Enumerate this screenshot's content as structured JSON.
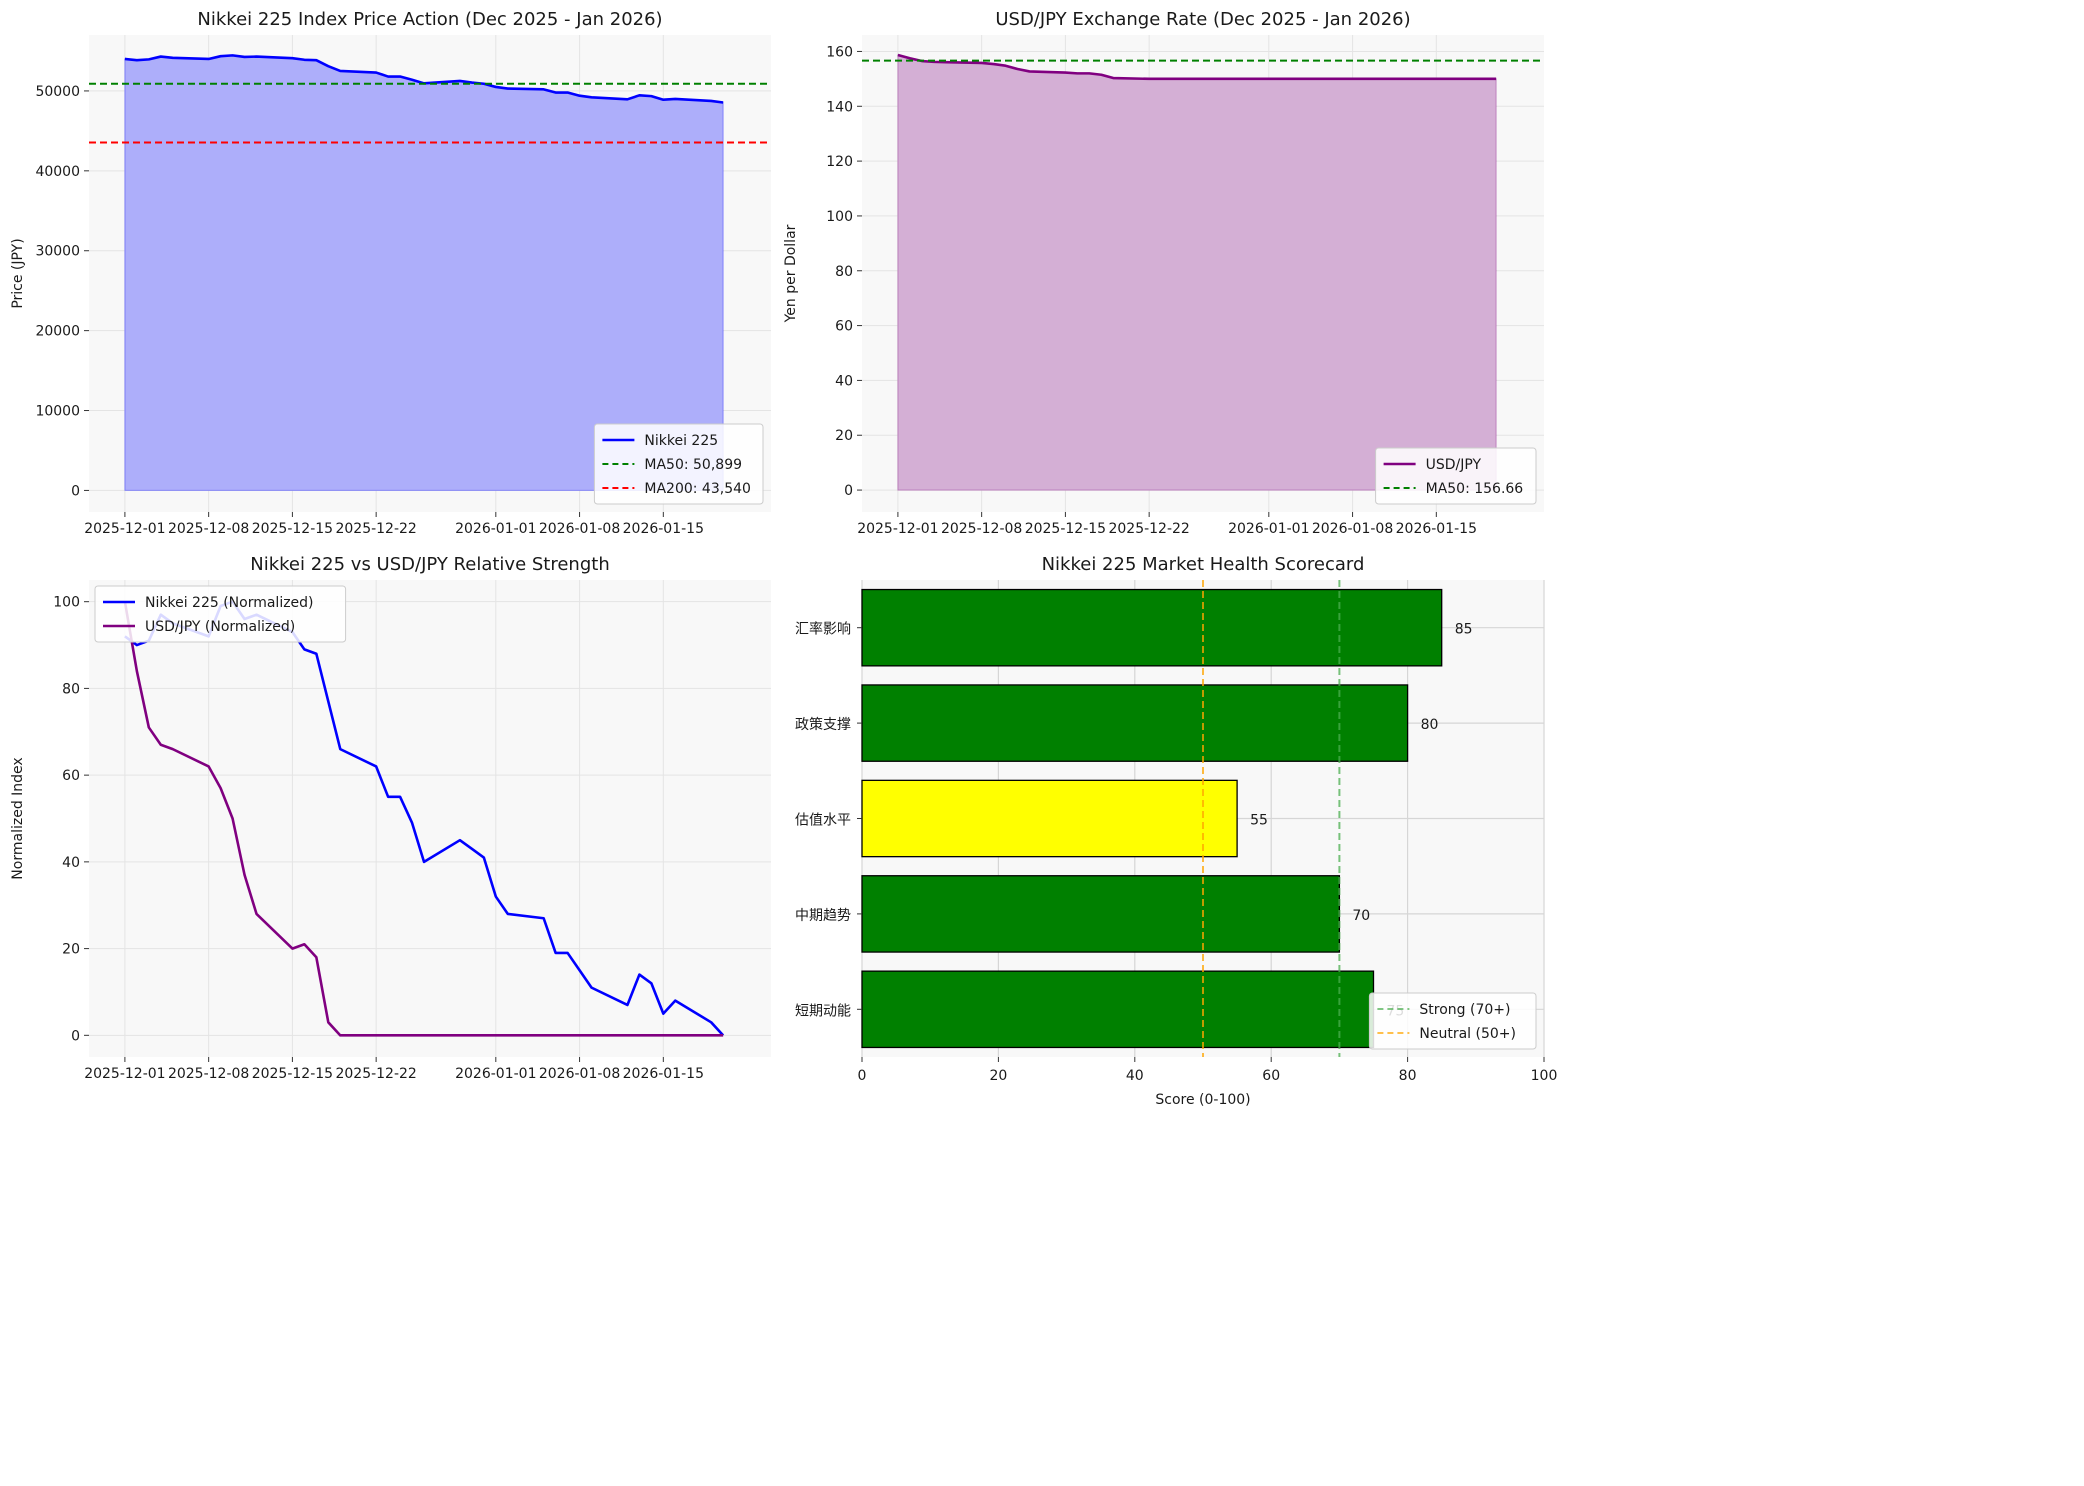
{
  "chart_data": [
    {
      "type": "area",
      "title": "Nikkei 225 Index Price Action (Dec 2025 - Jan 2026)",
      "xlabel": "",
      "ylabel": "Price (JPY)",
      "ylim": [
        -2700,
        57000
      ],
      "xlim": [
        "2025-11-28",
        "2026-01-24"
      ],
      "grid": true,
      "legend_placement": "lower-right",
      "x_ticks": [
        "2025-12-01",
        "2025-12-08",
        "2025-12-15",
        "2025-12-22",
        "2026-01-01",
        "2026-01-08",
        "2026-01-15"
      ],
      "y_ticks": [
        0,
        10000,
        20000,
        30000,
        40000,
        50000
      ],
      "series": [
        {
          "name": "Nikkei 225",
          "color": "#0000ff",
          "fill": "#adaefa",
          "x": [
            "2025-12-01",
            "2025-12-02",
            "2025-12-03",
            "2025-12-04",
            "2025-12-05",
            "2025-12-08",
            "2025-12-09",
            "2025-12-10",
            "2025-12-11",
            "2025-12-12",
            "2025-12-15",
            "2025-12-16",
            "2025-12-17",
            "2025-12-18",
            "2025-12-19",
            "2025-12-22",
            "2025-12-23",
            "2025-12-24",
            "2025-12-25",
            "2025-12-26",
            "2025-12-29",
            "2025-12-30",
            "2025-12-31",
            "2026-01-01",
            "2026-01-02",
            "2026-01-05",
            "2026-01-06",
            "2026-01-07",
            "2026-01-08",
            "2026-01-09",
            "2026-01-12",
            "2026-01-13",
            "2026-01-14",
            "2026-01-15",
            "2026-01-16",
            "2026-01-19",
            "2026-01-20"
          ],
          "values": [
            54000,
            53850,
            53950,
            54300,
            54150,
            54000,
            54350,
            54450,
            54250,
            54300,
            54100,
            53900,
            53850,
            53100,
            52500,
            52300,
            51800,
            51800,
            51400,
            50950,
            51250,
            51050,
            50900,
            50500,
            50300,
            50200,
            49800,
            49800,
            49400,
            49200,
            48950,
            49450,
            49350,
            48900,
            49000,
            48750,
            48550
          ]
        }
      ],
      "reference_lines": [
        {
          "name": "MA50: 50,899",
          "value": 50899,
          "color": "#008000",
          "style": "dashed"
        },
        {
          "name": "MA200: 43,540",
          "value": 43540,
          "color": "#ff0000",
          "style": "dashed"
        }
      ]
    },
    {
      "type": "area",
      "title": "USD/JPY Exchange Rate (Dec 2025 - Jan 2026)",
      "xlabel": "",
      "ylabel": "Yen per Dollar",
      "ylim": [
        -8,
        166
      ],
      "xlim": [
        "2025-11-28",
        "2026-01-24"
      ],
      "grid": true,
      "legend_placement": "lower-right",
      "x_ticks": [
        "2025-12-01",
        "2025-12-08",
        "2025-12-15",
        "2025-12-22",
        "2026-01-01",
        "2026-01-08",
        "2026-01-15"
      ],
      "y_ticks": [
        0,
        20,
        40,
        60,
        80,
        100,
        120,
        140,
        160
      ],
      "series": [
        {
          "name": "USD/JPY",
          "color": "#800080",
          "fill": "#d4afd5",
          "x": [
            "2025-12-01",
            "2025-12-02",
            "2025-12-03",
            "2025-12-04",
            "2025-12-05",
            "2025-12-08",
            "2025-12-09",
            "2025-12-10",
            "2025-12-11",
            "2025-12-12",
            "2025-12-15",
            "2025-12-16",
            "2025-12-17",
            "2025-12-18",
            "2025-12-19",
            "2025-12-22",
            "2026-01-20"
          ],
          "values": [
            158.7,
            157.5,
            156.5,
            156.2,
            156.1,
            155.8,
            155.4,
            154.8,
            153.6,
            152.7,
            152.3,
            152.0,
            152.0,
            151.5,
            150.3,
            150.0,
            150.0
          ]
        }
      ],
      "reference_lines": [
        {
          "name": "MA50: 156.66",
          "value": 156.66,
          "color": "#008000",
          "style": "dashed"
        }
      ]
    },
    {
      "type": "line",
      "title": "Nikkei 225 vs USD/JPY Relative Strength",
      "xlabel": "",
      "ylabel": "Normalized Index",
      "ylim": [
        -5,
        105
      ],
      "xlim": [
        "2025-11-28",
        "2026-01-24"
      ],
      "grid": true,
      "legend_placement": "upper-left",
      "x_ticks": [
        "2025-12-01",
        "2025-12-08",
        "2025-12-15",
        "2025-12-22",
        "2026-01-01",
        "2026-01-08",
        "2026-01-15"
      ],
      "y_ticks": [
        0,
        20,
        40,
        60,
        80,
        100
      ],
      "series": [
        {
          "name": "Nikkei 225 (Normalized)",
          "color": "#0000ff",
          "x": [
            "2025-12-01",
            "2025-12-02",
            "2025-12-03",
            "2025-12-04",
            "2025-12-05",
            "2025-12-08",
            "2025-12-09",
            "2025-12-10",
            "2025-12-11",
            "2025-12-12",
            "2025-12-15",
            "2025-12-16",
            "2025-12-17",
            "2025-12-18",
            "2025-12-19",
            "2025-12-22",
            "2025-12-23",
            "2025-12-24",
            "2025-12-25",
            "2025-12-26",
            "2025-12-29",
            "2025-12-30",
            "2025-12-31",
            "2026-01-01",
            "2026-01-02",
            "2026-01-05",
            "2026-01-06",
            "2026-01-07",
            "2026-01-08",
            "2026-01-09",
            "2026-01-12",
            "2026-01-13",
            "2026-01-14",
            "2026-01-15",
            "2026-01-16",
            "2026-01-19",
            "2026-01-20"
          ],
          "values": [
            92,
            90,
            91,
            97,
            95,
            92,
            99,
            100,
            96,
            97,
            93,
            89,
            88,
            77,
            66,
            62,
            55,
            55,
            49,
            40,
            45,
            43,
            41,
            32,
            28,
            27,
            19,
            19,
            15,
            11,
            7,
            14,
            12,
            5,
            8,
            3,
            0
          ]
        },
        {
          "name": "USD/JPY (Normalized)",
          "color": "#800080",
          "x": [
            "2025-12-01",
            "2025-12-02",
            "2025-12-03",
            "2025-12-04",
            "2025-12-05",
            "2025-12-08",
            "2025-12-09",
            "2025-12-10",
            "2025-12-11",
            "2025-12-12",
            "2025-12-15",
            "2025-12-16",
            "2025-12-17",
            "2025-12-18",
            "2025-12-19",
            "2025-12-22",
            "2026-01-20"
          ],
          "values": [
            100,
            84,
            71,
            67,
            66,
            62,
            57,
            50,
            37,
            28,
            20,
            21,
            18,
            3,
            0,
            0,
            0
          ]
        }
      ]
    },
    {
      "type": "bar",
      "orientation": "horizontal",
      "title": "Nikkei 225 Market Health Scorecard",
      "xlabel": "Score (0-100)",
      "ylabel": "",
      "xlim": [
        0,
        100
      ],
      "grid": true,
      "legend_placement": "lower-right",
      "x_ticks": [
        0,
        20,
        40,
        60,
        80,
        100
      ],
      "categories": [
        "汇率影响",
        "政策支撑",
        "估值水平",
        "中期趋势",
        "短期动能"
      ],
      "values": [
        85,
        80,
        55,
        70,
        75
      ],
      "bar_colors": [
        "#008000",
        "#008000",
        "#ffff00",
        "#008000",
        "#008000"
      ],
      "data_labels": [
        "85",
        "80",
        "55",
        "70",
        "75"
      ],
      "reference_lines": [
        {
          "name": "Strong (70+)",
          "value": 70,
          "color": "#4caf50",
          "style": "dashed"
        },
        {
          "name": "Neutral (50+)",
          "value": 50,
          "color": "#ffa500",
          "style": "dashed"
        }
      ]
    }
  ]
}
